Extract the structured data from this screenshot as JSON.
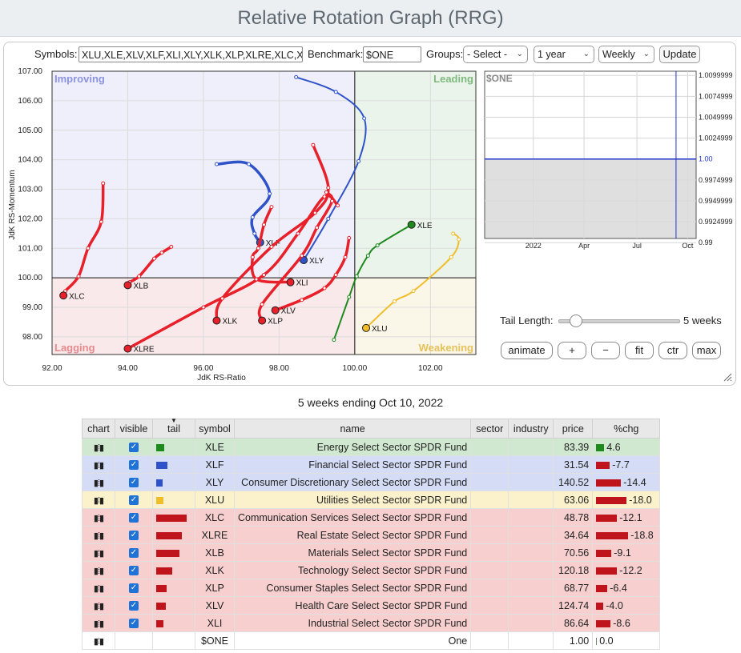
{
  "page": {
    "title": "Relative Rotation Graph (RRG)"
  },
  "controls": {
    "symbols_label": "Symbols:",
    "symbols_value": "XLU,XLE,XLV,XLF,XLI,XLY,XLK,XLP,XLRE,XLC,XLB",
    "benchmark_label": "Benchmark:",
    "benchmark_value": "$ONE",
    "groups_label": "Groups:",
    "groups_value": "- Select -",
    "period_value": "1 year",
    "freq_value": "Weekly",
    "update_label": "Update",
    "tail_length_label": "Tail Length:",
    "tail_length_value": "5 weeks",
    "buttons": [
      "animate",
      "+",
      "−",
      "fit",
      "ctr",
      "max"
    ]
  },
  "chart_data": {
    "type": "scatter",
    "xlabel": "JdK RS-Ratio",
    "ylabel": "JdK RS-Momentum",
    "xlim": [
      92,
      103.2
    ],
    "ylim": [
      97.4,
      107
    ],
    "xticks": [
      "92.00",
      "94.00",
      "96.00",
      "98.00",
      "100.00",
      "102.00"
    ],
    "yticks": [
      "98.00",
      "99.00",
      "100.00",
      "101.00",
      "102.00",
      "103.00",
      "104.00",
      "105.00",
      "106.00",
      "107.00"
    ],
    "quadrants": [
      "Improving",
      "Leading",
      "Lagging",
      "Weakening"
    ],
    "colors": {
      "XLE": "#1e8a1e",
      "XLF": "#2f52c9",
      "XLY": "#2f52c9",
      "XLU": "#f0be2a",
      "red": "#e8202a"
    },
    "series": [
      {
        "name": "XLE",
        "points": [
          [
            99.45,
            97.9
          ],
          [
            99.85,
            99.35
          ],
          [
            100.05,
            100.05
          ],
          [
            100.35,
            100.75
          ],
          [
            100.6,
            101.1
          ],
          [
            101.5,
            101.8
          ]
        ]
      },
      {
        "name": "XLF",
        "points": [
          [
            96.35,
            103.85
          ],
          [
            97.2,
            103.85
          ],
          [
            97.75,
            102.85
          ],
          [
            97.3,
            102.05
          ],
          [
            97.35,
            101.5
          ],
          [
            97.5,
            101.2
          ]
        ]
      },
      {
        "name": "XLY",
        "points": [
          [
            98.45,
            106.8
          ],
          [
            99.5,
            106.3
          ],
          [
            100.25,
            105.4
          ],
          [
            100.1,
            103.95
          ],
          [
            99.3,
            102.0
          ],
          [
            98.65,
            100.6
          ]
        ]
      },
      {
        "name": "XLU",
        "points": [
          [
            102.6,
            101.5
          ],
          [
            102.75,
            101.3
          ],
          [
            102.55,
            100.7
          ],
          [
            101.55,
            99.55
          ],
          [
            101.05,
            99.2
          ],
          [
            100.3,
            98.3
          ]
        ]
      },
      {
        "name": "XLC",
        "points": [
          [
            93.35,
            103.2
          ],
          [
            93.3,
            101.9
          ],
          [
            92.95,
            101.0
          ],
          [
            92.7,
            100.05
          ],
          [
            92.35,
            99.55
          ],
          [
            92.3,
            99.4
          ]
        ]
      },
      {
        "name": "XLRE",
        "points": [
          [
            99.55,
            102.45
          ],
          [
            99.2,
            102.75
          ],
          [
            98.5,
            101.5
          ],
          [
            97.6,
            100.1
          ],
          [
            96.0,
            99.0
          ],
          [
            94.0,
            97.6
          ]
        ]
      },
      {
        "name": "XLB",
        "points": [
          [
            95.15,
            101.05
          ],
          [
            94.9,
            100.85
          ],
          [
            94.7,
            100.65
          ],
          [
            94.3,
            100.05
          ],
          [
            94.05,
            99.85
          ],
          [
            94.0,
            99.75
          ]
        ]
      },
      {
        "name": "XLK",
        "points": [
          [
            98.9,
            104.5
          ],
          [
            99.3,
            103.05
          ],
          [
            98.95,
            102.2
          ],
          [
            97.8,
            101.05
          ],
          [
            96.5,
            99.3
          ],
          [
            96.35,
            98.55
          ]
        ]
      },
      {
        "name": "XLP",
        "points": [
          [
            99.25,
            102.9
          ],
          [
            99.4,
            102.6
          ],
          [
            99.0,
            101.7
          ],
          [
            98.6,
            100.75
          ],
          [
            97.55,
            99.1
          ],
          [
            97.55,
            98.55
          ]
        ]
      },
      {
        "name": "XLV",
        "points": [
          [
            99.85,
            101.35
          ],
          [
            99.75,
            100.7
          ],
          [
            99.5,
            100.1
          ],
          [
            99.2,
            99.65
          ],
          [
            98.6,
            99.25
          ],
          [
            97.9,
            98.9
          ]
        ]
      },
      {
        "name": "XLI",
        "points": [
          [
            97.8,
            102.4
          ],
          [
            97.6,
            101.8
          ],
          [
            97.45,
            101.0
          ],
          [
            97.3,
            100.7
          ],
          [
            97.4,
            99.95
          ],
          [
            98.3,
            99.85
          ]
        ]
      }
    ],
    "benchmark_panel": {
      "label": "$ONE",
      "xticks": [
        "2022",
        "Apr",
        "Jul",
        "Oct"
      ],
      "yticks": [
        "1.0099999",
        "1.0074999",
        "1.0049999",
        "1.0024999",
        "1.00",
        "0.9974999",
        "0.9949999",
        "0.9924999",
        "0.99"
      ],
      "value": 1.0
    }
  },
  "subtitle": "5 weeks ending Oct 10, 2022",
  "table": {
    "headers": [
      "chart",
      "visible",
      "tail",
      "symbol",
      "name",
      "sector",
      "industry",
      "price",
      "%chg"
    ],
    "rows": [
      {
        "cls": "g",
        "symbol": "XLE",
        "name": "Energy Select Sector SPDR Fund",
        "price": "83.39",
        "chg": "4.6",
        "color": "#1e8a1e",
        "tail": 0.25,
        "bar": 0.12
      },
      {
        "cls": "b",
        "symbol": "XLF",
        "name": "Financial Select Sector SPDR Fund",
        "price": "31.54",
        "chg": "-7.7",
        "color": "#2f52c9",
        "tail": 0.35,
        "bar": 0.21
      },
      {
        "cls": "b",
        "symbol": "XLY",
        "name": "Consumer Discretionary Select Sector SPDR Fund",
        "price": "140.52",
        "chg": "-14.4",
        "color": "#2f52c9",
        "tail": 0.2,
        "bar": 0.39
      },
      {
        "cls": "y",
        "symbol": "XLU",
        "name": "Utilities Select Sector SPDR Fund",
        "price": "63.06",
        "chg": "-18.0",
        "color": "#f0be2a",
        "tail": 0.22,
        "bar": 0.48
      },
      {
        "cls": "r",
        "symbol": "XLC",
        "name": "Communication Services Select Sector SPDR Fund",
        "price": "48.78",
        "chg": "-12.1",
        "color": "#c0141c",
        "tail": 0.95,
        "bar": 0.32
      },
      {
        "cls": "r",
        "symbol": "XLRE",
        "name": "Real Estate Select Sector SPDR Fund",
        "price": "34.64",
        "chg": "-18.8",
        "color": "#c0141c",
        "tail": 0.8,
        "bar": 0.5
      },
      {
        "cls": "r",
        "symbol": "XLB",
        "name": "Materials Select Sector SPDR Fund",
        "price": "70.56",
        "chg": "-9.1",
        "color": "#c0141c",
        "tail": 0.73,
        "bar": 0.24
      },
      {
        "cls": "r",
        "symbol": "XLK",
        "name": "Technology Select Sector SPDR Fund",
        "price": "120.18",
        "chg": "-12.2",
        "color": "#c0141c",
        "tail": 0.5,
        "bar": 0.33
      },
      {
        "cls": "r",
        "symbol": "XLP",
        "name": "Consumer Staples Select Sector SPDR Fund",
        "price": "68.77",
        "chg": "-6.4",
        "color": "#c0141c",
        "tail": 0.32,
        "bar": 0.17
      },
      {
        "cls": "r",
        "symbol": "XLV",
        "name": "Health Care Select Sector SPDR Fund",
        "price": "124.74",
        "chg": "-4.0",
        "color": "#c0141c",
        "tail": 0.3,
        "bar": 0.11
      },
      {
        "cls": "r",
        "symbol": "XLI",
        "name": "Industrial Select Sector SPDR Fund",
        "price": "86.64",
        "chg": "-8.6",
        "color": "#c0141c",
        "tail": 0.22,
        "bar": 0.23
      },
      {
        "cls": "w",
        "symbol": "$ONE",
        "name": "One",
        "price": "1.00",
        "chg": "0.0",
        "color": "#2f8a2f",
        "tail": 0,
        "bar": 0
      }
    ]
  }
}
